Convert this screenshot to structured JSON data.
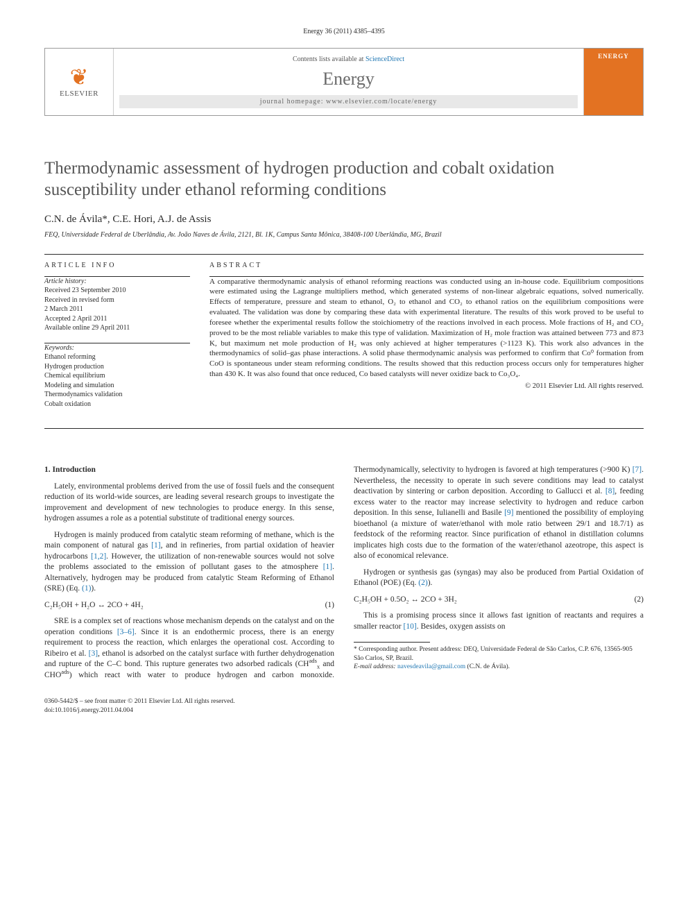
{
  "journal_ref": "Energy 36 (2011) 4385–4395",
  "masthead": {
    "publisher": "ELSEVIER",
    "contents_prefix": "Contents lists available at ",
    "contents_link": "ScienceDirect",
    "journal_name": "Energy",
    "homepage_prefix": "journal homepage: ",
    "homepage_url": "www.elsevier.com/locate/energy",
    "cover_label": "ENERGY"
  },
  "title": "Thermodynamic assessment of hydrogen production and cobalt oxidation susceptibility under ethanol reforming conditions",
  "authors": "C.N. de Ávila*, C.E. Hori, A.J. de Assis",
  "affiliation": "FEQ, Universidade Federal de Uberlândia, Av. João Naves de Ávila, 2121, Bl. 1K, Campus Santa Mônica, 38408-100 Uberlândia, MG, Brazil",
  "article_info_head": "ARTICLE INFO",
  "abstract_head": "ABSTRACT",
  "history_label": "Article history:",
  "history_lines": {
    "l1": "Received 23 September 2010",
    "l2": "Received in revised form",
    "l3": "2 March 2011",
    "l4": "Accepted 2 April 2011",
    "l5": "Available online 29 April 2011"
  },
  "keywords_label": "Keywords:",
  "keywords": {
    "k1": "Ethanol reforming",
    "k2": "Hydrogen production",
    "k3": "Chemical equilibrium",
    "k4": "Modeling and simulation",
    "k5": "Thermodynamics validation",
    "k6": "Cobalt oxidation"
  },
  "abstract_text": "A comparative thermodynamic analysis of ethanol reforming reactions was conducted using an in-house code. Equilibrium compositions were estimated using the Lagrange multipliers method, which generated systems of non-linear algebraic equations, solved numerically. Effects of temperature, pressure and steam to ethanol, O₂ to ethanol and CO₂ to ethanol ratios on the equilibrium compositions were evaluated. The validation was done by comparing these data with experimental literature. The results of this work proved to be useful to foresee whether the experimental results follow the stoichiometry of the reactions involved in each process. Mole fractions of H₂ and CO₂ proved to be the most reliable variables to make this type of validation. Maximization of H₂ mole fraction was attained between 773 and 873 K, but maximum net mole production of H₂ was only achieved at higher temperatures (>1123 K). This work also advances in the thermodynamics of solid–gas phase interactions. A solid phase thermodynamic analysis was performed to confirm that Co⁰ formation from CoO is spontaneous under steam reforming conditions. The results showed that this reduction process occurs only for temperatures higher than 430 K. It was also found that once reduced, Co based catalysts will never oxidize back to Co₃O₄.",
  "copyright": "© 2011 Elsevier Ltd. All rights reserved.",
  "section1_head": "1. Introduction",
  "para1": "Lately, environmental problems derived from the use of fossil fuels and the consequent reduction of its world-wide sources, are leading several research groups to investigate the improvement and development of new technologies to produce energy. In this sense, hydrogen assumes a role as a potential substitute of traditional energy sources.",
  "para2a": "Hydrogen is mainly produced from catalytic steam reforming of methane, which is the main component of natural gas ",
  "para2_c1": "[1]",
  "para2b": ", and in refineries, from partial oxidation of heavier hydrocarbons ",
  "para2_c2": "[1,2]",
  "para2c": ". However, the utilization of non-renewable sources would not solve the problems associated to the emission of pollutant gases to the atmosphere ",
  "para2_c3": "[1]",
  "para2d": ". Alternatively, hydrogen may be produced from catalytic Steam Reforming of Ethanol (SRE) (Eq. ",
  "para2_c4": "(1)",
  "para2e": ").",
  "eq1": "C₂H₅OH + H₂O ↔ 2CO + 4H₂",
  "eq1_num": "(1)",
  "para3a": "SRE is a complex set of reactions whose mechanism depends on the catalyst and on the operation conditions ",
  "para3_c1": "[3–6]",
  "para3b": ". Since it is an endothermic process, there is an energy requirement to process the reaction, which enlarges the operational cost. According to Ribeiro et al. ",
  "para3_c2": "[3]",
  "para3c": ", ethanol is adsorbed on the catalyst surface with further dehydrogenation and rupture of the C–C bond. This rupture generates two adsorbed radicals (CH",
  "para3_sup1": "ads",
  "para3_sub1": "x",
  "para3c2": " and CHO",
  "para3_sup2": "ads",
  "para3d": ") which react with water to produce hydrogen and carbon monoxide. Thermodynamically, selectivity to hydrogen is favored at high temperatures (>900 K) ",
  "para3_c3": "[7]",
  "para3e": ". Nevertheless, the necessity to operate in such severe conditions may lead to catalyst deactivation by sintering or carbon deposition. According to Gallucci et al. ",
  "para3_c4": "[8]",
  "para3f": ", feeding excess water to the reactor may increase selectivity to hydrogen and reduce carbon deposition. In this sense, Iulianelli and Basile ",
  "para3_c5": "[9]",
  "para3g": " mentioned the possibility of employing bioethanol (a mixture of water/ethanol with mole ratio between 29/1 and 18.7/1) as feedstock of the reforming reactor. Since purification of ethanol in distillation columns implicates high costs due to the formation of the water/ethanol azeotrope, this aspect is also of economical relevance.",
  "para4a": "Hydrogen or synthesis gas (syngas) may also be produced from Partial Oxidation of Ethanol (POE) (Eq. ",
  "para4_c1": "(2)",
  "para4b": ").",
  "eq2": "C₂H₅OH + 0.5O₂ ↔ 2CO + 3H₂",
  "eq2_num": "(2)",
  "para5a": "This is a promising process since it allows fast ignition of reactants and requires a smaller reactor ",
  "para5_c1": "[10]",
  "para5b": ". Besides, oxygen assists on",
  "footnote_corr": "* Corresponding author. Present address: DEQ, Universidade Federal de São Carlos, C.P. 676, 13565-905 São Carlos, SP, Brazil.",
  "footnote_email_label": "E-mail address: ",
  "footnote_email": "navesdeavila@gmail.com",
  "footnote_email_suffix": " (C.N. de Ávila).",
  "footer_line1": "0360-5442/$ – see front matter © 2011 Elsevier Ltd. All rights reserved.",
  "footer_doi": "doi:10.1016/j.energy.2011.04.004"
}
